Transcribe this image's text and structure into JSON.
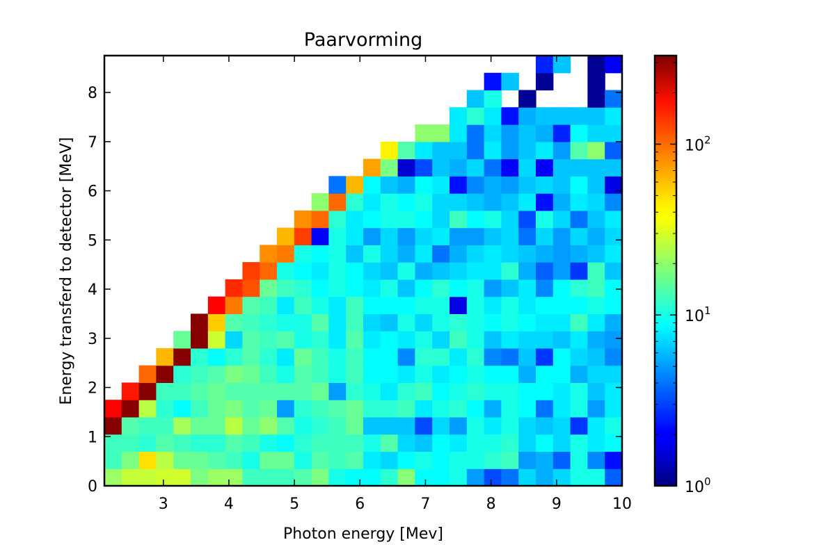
{
  "chart_data": {
    "type": "heatmap",
    "title": "Paarvorming",
    "xlabel": "Photon energy [Mev]",
    "ylabel": "Energy transferd to detector [MeV]",
    "xlim": [
      2.1,
      10
    ],
    "ylim": [
      0,
      8.75
    ],
    "x_ticks": [
      "3",
      "4",
      "5",
      "6",
      "7",
      "8",
      "9",
      "10"
    ],
    "y_ticks": [
      "0",
      "1",
      "2",
      "3",
      "4",
      "5",
      "6",
      "7",
      "8"
    ],
    "colorbar": {
      "scale": "log",
      "range": [
        1,
        330
      ],
      "colormap": "jet",
      "tick_labels": [
        "10",
        "10",
        "10"
      ],
      "tick_exponents": [
        "0",
        "1",
        "2"
      ]
    },
    "grid": false,
    "bins": {
      "nx": 30,
      "ny": 25
    },
    "counts_log10_rows_bottom_to_top": [
      [
        1.33,
        1.43,
        1.43,
        1.46,
        1.46,
        1.25,
        1.33,
        1.33,
        1.1,
        1.1,
        1.1,
        1.15,
        1.25,
        1.0,
        0.95,
        0.95,
        1.05,
        1.28,
        0.95,
        0.95,
        1.0,
        0.7,
        0.5,
        0.6,
        0.85,
        0.75,
        0.85,
        1.0,
        1.0,
        0.55
      ],
      [
        1.1,
        1.25,
        1.65,
        1.4,
        1.2,
        1.2,
        1.15,
        1.1,
        1.0,
        1.2,
        1.2,
        1.0,
        1.15,
        1.1,
        1.15,
        0.9,
        0.85,
        0.95,
        1.0,
        0.95,
        1.0,
        1.0,
        1.05,
        1.1,
        0.7,
        0.75,
        0.55,
        1.0,
        0.65,
        0.35
      ],
      [
        1.1,
        1.1,
        1.05,
        1.15,
        1.1,
        1.05,
        1.05,
        1.15,
        1.1,
        1.0,
        0.95,
        1.05,
        1.1,
        1.1,
        1.1,
        1.0,
        1.15,
        0.85,
        0.8,
        0.95,
        0.9,
        1.0,
        1.0,
        1.05,
        0.85,
        0.95,
        0.85,
        1.0,
        0.9,
        0.95
      ],
      [
        2.5,
        1.15,
        1.1,
        1.1,
        1.35,
        1.2,
        1.2,
        1.4,
        1.2,
        1.3,
        1.15,
        1.0,
        1.05,
        1.1,
        1.2,
        0.8,
        0.8,
        0.8,
        0.5,
        0.85,
        0.7,
        1.0,
        0.9,
        1.0,
        0.85,
        0.8,
        0.85,
        0.45,
        0.9,
        1.0
      ],
      [
        2.2,
        2.5,
        1.4,
        1.05,
        0.95,
        1.1,
        1.2,
        1.25,
        1.15,
        1.2,
        0.7,
        1.05,
        1.1,
        1.15,
        1.2,
        1.05,
        1.05,
        1.1,
        0.9,
        1.0,
        1.05,
        0.95,
        0.75,
        1.0,
        0.95,
        0.6,
        0.9,
        1.0,
        0.7,
        0.9
      ],
      [
        null,
        2.15,
        2.5,
        1.1,
        1.1,
        1.15,
        1.2,
        1.15,
        1.15,
        1.15,
        1.15,
        1.15,
        1.2,
        0.7,
        1.05,
        1.0,
        0.9,
        1.05,
        1.1,
        0.95,
        1.0,
        1.05,
        1.0,
        1.0,
        0.95,
        0.95,
        0.9,
        1.0,
        0.8,
        0.9
      ],
      [
        null,
        null,
        1.95,
        2.5,
        1.05,
        1.1,
        1.15,
        1.25,
        1.2,
        1.1,
        1.0,
        1.15,
        1.1,
        1.0,
        1.1,
        0.95,
        0.95,
        0.9,
        1.0,
        0.9,
        0.95,
        1.0,
        0.95,
        0.95,
        0.75,
        0.95,
        0.95,
        0.75,
        0.85,
        0.85
      ],
      [
        null,
        null,
        null,
        1.75,
        2.5,
        1.05,
        0.95,
        1.05,
        1.15,
        1.05,
        0.9,
        1.2,
        1.1,
        1.0,
        1.1,
        0.95,
        0.95,
        0.65,
        1.05,
        1.05,
        0.9,
        1.05,
        0.65,
        0.6,
        0.8,
        0.45,
        0.95,
        0.85,
        0.8,
        0.65
      ],
      [
        null,
        null,
        null,
        null,
        1.2,
        2.5,
        1.45,
        0.85,
        1.15,
        1.1,
        1.15,
        1.0,
        1.05,
        0.9,
        1.15,
        0.9,
        0.95,
        0.9,
        1.0,
        0.85,
        1.1,
        1.0,
        0.8,
        0.9,
        0.85,
        0.85,
        0.8,
        0.9,
        0.75,
        0.7
      ],
      [
        null,
        null,
        null,
        null,
        null,
        2.5,
        1.7,
        1.15,
        1.1,
        1.05,
        1.0,
        1.0,
        1.15,
        0.9,
        1.1,
        0.85,
        0.8,
        1.0,
        0.85,
        1.0,
        1.05,
        1.0,
        0.95,
        1.0,
        0.95,
        0.9,
        0.9,
        1.1,
        0.9,
        0.75
      ],
      [
        null,
        null,
        null,
        null,
        null,
        null,
        2.2,
        1.9,
        1.15,
        1.1,
        0.9,
        1.1,
        1.0,
        0.9,
        1.1,
        0.95,
        0.95,
        0.95,
        1.0,
        1.0,
        0.25,
        1.0,
        0.9,
        1.0,
        0.9,
        0.95,
        0.95,
        0.95,
        1.0,
        0.95
      ],
      [
        null,
        null,
        null,
        null,
        null,
        null,
        null,
        2.1,
        2.0,
        1.2,
        1.1,
        1.05,
        0.95,
        1.0,
        0.95,
        0.9,
        1.0,
        0.8,
        0.95,
        1.05,
        0.95,
        1.0,
        0.7,
        0.8,
        0.9,
        0.65,
        0.95,
        1.05,
        1.1,
        0.95
      ],
      [
        null,
        null,
        null,
        null,
        null,
        null,
        null,
        null,
        2.05,
        1.95,
        1.0,
        0.95,
        0.9,
        1.0,
        0.95,
        0.85,
        0.8,
        1.0,
        0.75,
        0.8,
        0.85,
        0.9,
        0.9,
        1.05,
        0.75,
        0.55,
        0.7,
        0.45,
        1.1,
        0.8
      ],
      [
        null,
        null,
        null,
        null,
        null,
        null,
        null,
        null,
        null,
        1.85,
        1.9,
        1.0,
        0.95,
        1.0,
        0.8,
        1.0,
        0.85,
        0.75,
        0.9,
        0.6,
        0.75,
        0.85,
        0.9,
        0.85,
        0.8,
        0.75,
        0.7,
        0.75,
        0.8,
        0.9
      ],
      [
        null,
        null,
        null,
        null,
        null,
        null,
        null,
        null,
        null,
        null,
        1.75,
        2.05,
        0.3,
        1.0,
        0.9,
        0.7,
        0.85,
        0.7,
        0.85,
        0.9,
        0.7,
        0.7,
        0.8,
        0.85,
        0.6,
        0.85,
        0.7,
        0.85,
        0.75,
        0.85
      ],
      [
        null,
        null,
        null,
        null,
        null,
        null,
        null,
        null,
        null,
        null,
        null,
        1.85,
        1.95,
        1.05,
        0.9,
        0.95,
        1.0,
        1.0,
        0.95,
        0.85,
        1.1,
        0.95,
        1.0,
        0.85,
        0.5,
        1.0,
        0.85,
        0.6,
        0.8,
        0.9
      ],
      [
        null,
        null,
        null,
        null,
        null,
        null,
        null,
        null,
        null,
        null,
        null,
        null,
        1.3,
        1.95,
        1.05,
        0.9,
        1.0,
        0.95,
        1.0,
        0.85,
        0.85,
        0.8,
        0.75,
        0.8,
        0.9,
        0.35,
        0.75,
        0.9,
        0.85,
        0.65
      ],
      [
        null,
        null,
        null,
        null,
        null,
        null,
        null,
        null,
        null,
        null,
        null,
        null,
        null,
        0.6,
        1.75,
        0.95,
        0.8,
        0.75,
        0.95,
        0.9,
        0.35,
        0.65,
        0.75,
        0.7,
        0.8,
        0.85,
        0.8,
        0.95,
        0.8,
        0.25
      ],
      [
        null,
        null,
        null,
        null,
        null,
        null,
        null,
        null,
        null,
        null,
        null,
        null,
        null,
        null,
        null,
        1.8,
        1.25,
        0.2,
        0.5,
        0.8,
        0.75,
        0.85,
        0.6,
        0.3,
        0.85,
        0.3,
        0.8,
        0.8,
        0.8,
        0.8
      ],
      [
        null,
        null,
        null,
        null,
        null,
        null,
        null,
        null,
        null,
        null,
        null,
        null,
        null,
        null,
        null,
        null,
        1.6,
        1.15,
        0.9,
        0.8,
        0.8,
        0.6,
        0.9,
        0.7,
        0.8,
        0.9,
        0.7,
        1.15,
        1.3,
        0.55
      ],
      [
        null,
        null,
        null,
        null,
        null,
        null,
        null,
        null,
        null,
        null,
        null,
        null,
        null,
        null,
        null,
        null,
        null,
        null,
        1.3,
        1.3,
        0.9,
        0.6,
        0.85,
        0.7,
        0.8,
        0.75,
        0.4,
        0.95,
        0.85,
        0.85
      ],
      [
        null,
        null,
        null,
        null,
        null,
        null,
        null,
        null,
        null,
        null,
        null,
        null,
        null,
        null,
        null,
        null,
        null,
        null,
        null,
        null,
        0.9,
        1.05,
        0.9,
        0.35,
        0.75,
        0.8,
        0.8,
        0.8,
        0.8,
        0.9
      ],
      [
        null,
        null,
        null,
        null,
        null,
        null,
        null,
        null,
        null,
        null,
        null,
        null,
        null,
        null,
        null,
        null,
        null,
        null,
        null,
        null,
        null,
        0.8,
        1.0,
        null,
        0.05,
        null,
        null,
        null,
        0.05,
        0.6
      ],
      [
        null,
        null,
        null,
        null,
        null,
        null,
        null,
        null,
        null,
        null,
        null,
        null,
        null,
        null,
        null,
        null,
        null,
        null,
        null,
        null,
        null,
        null,
        0.35,
        0.8,
        null,
        0.05,
        null,
        null,
        0.05,
        null
      ],
      [
        null,
        null,
        null,
        null,
        null,
        null,
        null,
        null,
        null,
        null,
        null,
        null,
        null,
        null,
        null,
        null,
        null,
        null,
        null,
        null,
        null,
        null,
        null,
        null,
        null,
        0.4,
        0.8,
        null,
        0.05,
        0.3
      ]
    ]
  }
}
